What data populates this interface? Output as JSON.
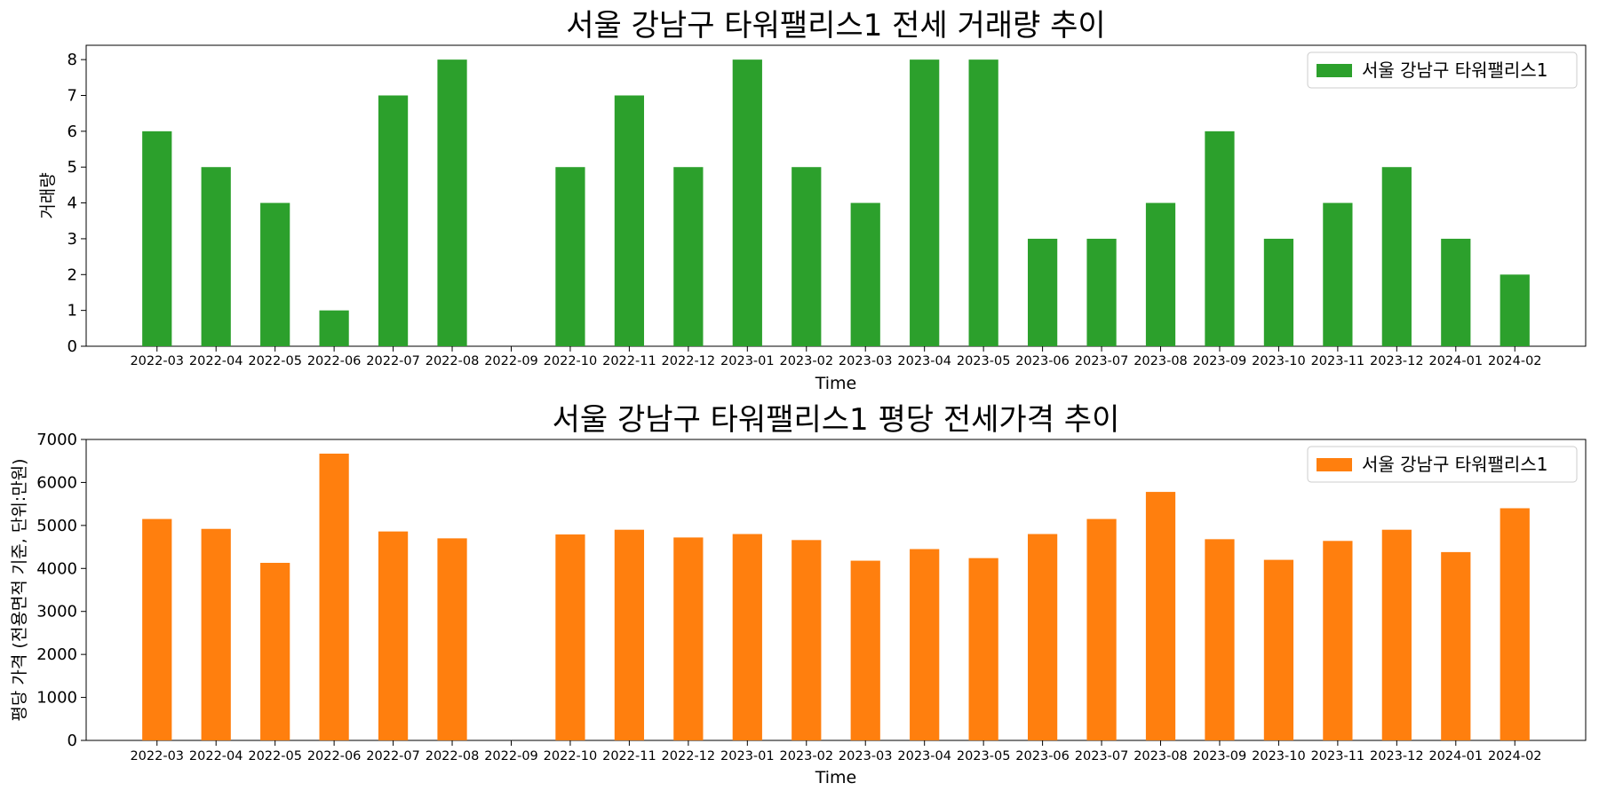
{
  "chart_data": [
    {
      "type": "bar",
      "title": "서울 강남구 타워팰리스1 전세 거래량 추이",
      "xlabel": "Time",
      "ylabel": "거래량",
      "categories": [
        "2022-03",
        "2022-04",
        "2022-05",
        "2022-06",
        "2022-07",
        "2022-08",
        "2022-09",
        "2022-10",
        "2022-11",
        "2022-12",
        "2023-01",
        "2023-02",
        "2023-03",
        "2023-04",
        "2023-05",
        "2023-06",
        "2023-07",
        "2023-08",
        "2023-09",
        "2023-10",
        "2023-11",
        "2023-12",
        "2024-01",
        "2024-02"
      ],
      "series": [
        {
          "name": "서울 강남구 타워팰리스1",
          "color": "#2ca02c",
          "values": [
            6,
            5,
            4,
            1,
            7,
            8,
            0,
            5,
            7,
            5,
            8,
            5,
            4,
            8,
            8,
            3,
            3,
            4,
            6,
            3,
            4,
            5,
            3,
            2
          ]
        }
      ],
      "ylim": [
        0,
        8.4
      ],
      "yticks": [
        0,
        1,
        2,
        3,
        4,
        5,
        6,
        7,
        8
      ],
      "legend_position": "top-right",
      "grid": false
    },
    {
      "type": "bar",
      "title": "서울 강남구 타워팰리스1 평당 전세가격 추이",
      "xlabel": "Time",
      "ylabel": "평당 가격 (전용면적 기준, 단위:만원)",
      "categories": [
        "2022-03",
        "2022-04",
        "2022-05",
        "2022-06",
        "2022-07",
        "2022-08",
        "2022-09",
        "2022-10",
        "2022-11",
        "2022-12",
        "2023-01",
        "2023-02",
        "2023-03",
        "2023-04",
        "2023-05",
        "2023-06",
        "2023-07",
        "2023-08",
        "2023-09",
        "2023-10",
        "2023-11",
        "2023-12",
        "2024-01",
        "2024-02"
      ],
      "series": [
        {
          "name": "서울 강남구 타워팰리스1",
          "color": "#ff7f0e",
          "values": [
            5150,
            4920,
            4130,
            6670,
            4860,
            4700,
            0,
            4790,
            4900,
            4720,
            4800,
            4660,
            4180,
            4450,
            4240,
            4800,
            5150,
            5780,
            4680,
            4200,
            4640,
            4900,
            4380,
            5400
          ]
        }
      ],
      "ylim": [
        0,
        7000
      ],
      "yticks": [
        0,
        1000,
        2000,
        3000,
        4000,
        5000,
        6000,
        7000
      ],
      "legend_position": "top-right",
      "grid": false
    }
  ]
}
